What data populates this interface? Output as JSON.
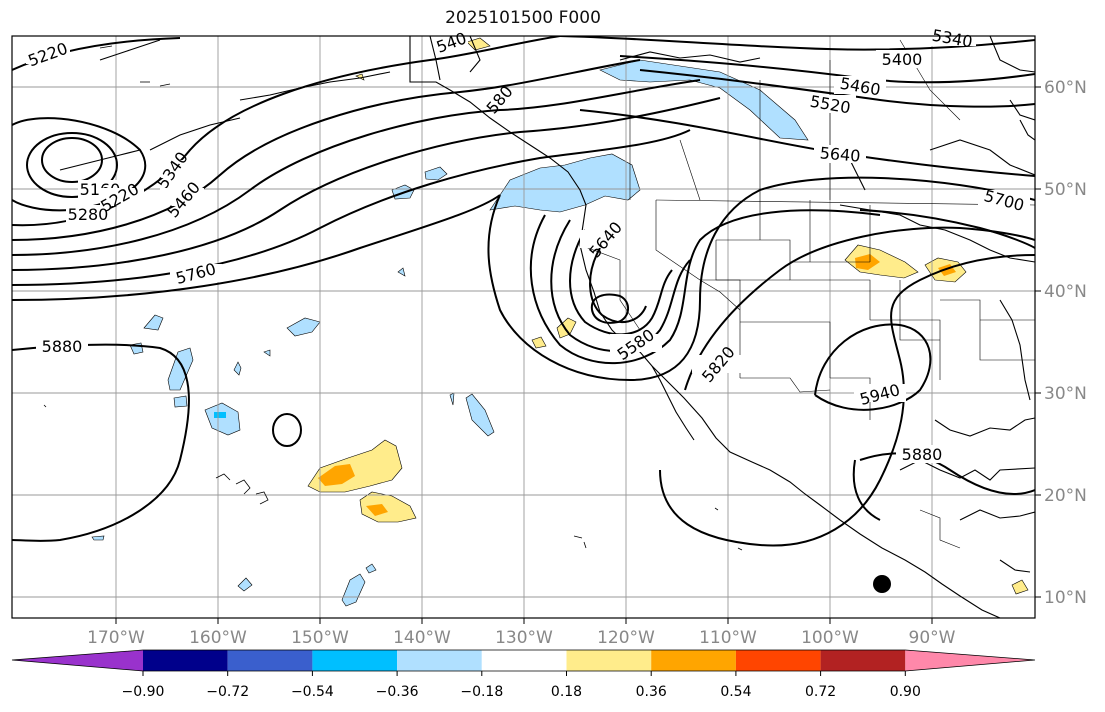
{
  "title": "2025101500 F000",
  "lon_labels": [
    "170°W",
    "160°W",
    "150°W",
    "140°W",
    "130°W",
    "120°W",
    "110°W",
    "100°W",
    "90°W"
  ],
  "lat_labels": [
    "60°N",
    "50°N",
    "40°N",
    "30°N",
    "20°N",
    "10°N"
  ],
  "contour_labels": [
    "5220",
    "5160",
    "5280",
    "5220",
    "5340",
    "5460",
    "5760",
    "5880",
    "5400",
    "5460",
    "5520",
    "5640",
    "5700",
    "5640",
    "5580",
    "5820",
    "5940",
    "5880",
    "540",
    "5340",
    "580"
  ],
  "colorbar": {
    "ticks": [
      "−0.90",
      "−0.72",
      "−0.54",
      "−0.36",
      "−0.18",
      "0.18",
      "0.36",
      "0.54",
      "0.72",
      "0.90"
    ],
    "colors": [
      "#9932cc",
      "#00008b",
      "#3a5fcd",
      "#00bfff",
      "#b0e0ff",
      "#ffffff",
      "#ffec8b",
      "#ffa500",
      "#ff4500",
      "#b22222",
      "#ff88aa"
    ]
  },
  "colors": {
    "contour": "#000000",
    "negative_fill": "#b0e0ff",
    "positive_fill": "#ffec8b",
    "positive_core": "#ffa500",
    "grid": "#999999",
    "tick_label": "#888888"
  }
}
